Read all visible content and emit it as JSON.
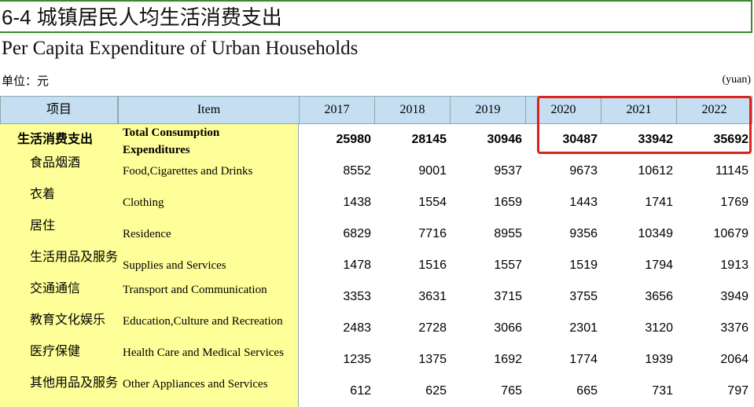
{
  "header": {
    "title": "6-4 城镇居民人均生活消费支出",
    "subtitle": "Per Capita Expenditure of Urban Households",
    "unit_cn": "单位：元",
    "unit_en": "(yuan)"
  },
  "table": {
    "columns": {
      "cn": "项目",
      "en": "Item",
      "years": [
        "2017",
        "2018",
        "2019",
        "2020",
        "2021",
        "2022"
      ]
    },
    "rows": [
      {
        "cn": "生活消费支出",
        "en": "Total Consumption Expenditures",
        "values": [
          25980,
          28145,
          30946,
          30487,
          33942,
          35692
        ]
      },
      {
        "cn": "食品烟酒",
        "en": "Food,Cigarettes and Drinks",
        "values": [
          8552,
          9001,
          9537,
          9673,
          10612,
          11145
        ]
      },
      {
        "cn": "衣着",
        "en": "Clothing",
        "values": [
          1438,
          1554,
          1659,
          1443,
          1741,
          1769
        ]
      },
      {
        "cn": "居住",
        "en": "Residence",
        "values": [
          6829,
          7716,
          8955,
          9356,
          10349,
          10679
        ]
      },
      {
        "cn": "生活用品及服务",
        "en": "Supplies and Services",
        "values": [
          1478,
          1516,
          1557,
          1519,
          1794,
          1913
        ]
      },
      {
        "cn": "交通通信",
        "en": "Transport and  Communication",
        "values": [
          3353,
          3631,
          3715,
          3755,
          3656,
          3949
        ]
      },
      {
        "cn": "教育文化娱乐",
        "en": "Education,Culture and Recreation",
        "values": [
          2483,
          2728,
          3066,
          2301,
          3120,
          3376
        ]
      },
      {
        "cn": "医疗保健",
        "en": "Health Care and Medical Services",
        "values": [
          1235,
          1375,
          1692,
          1774,
          1939,
          2064
        ]
      },
      {
        "cn": "其他用品及服务",
        "en": "Other Appliances and Services",
        "values": [
          612,
          625,
          765,
          665,
          731,
          797
        ]
      }
    ]
  }
}
